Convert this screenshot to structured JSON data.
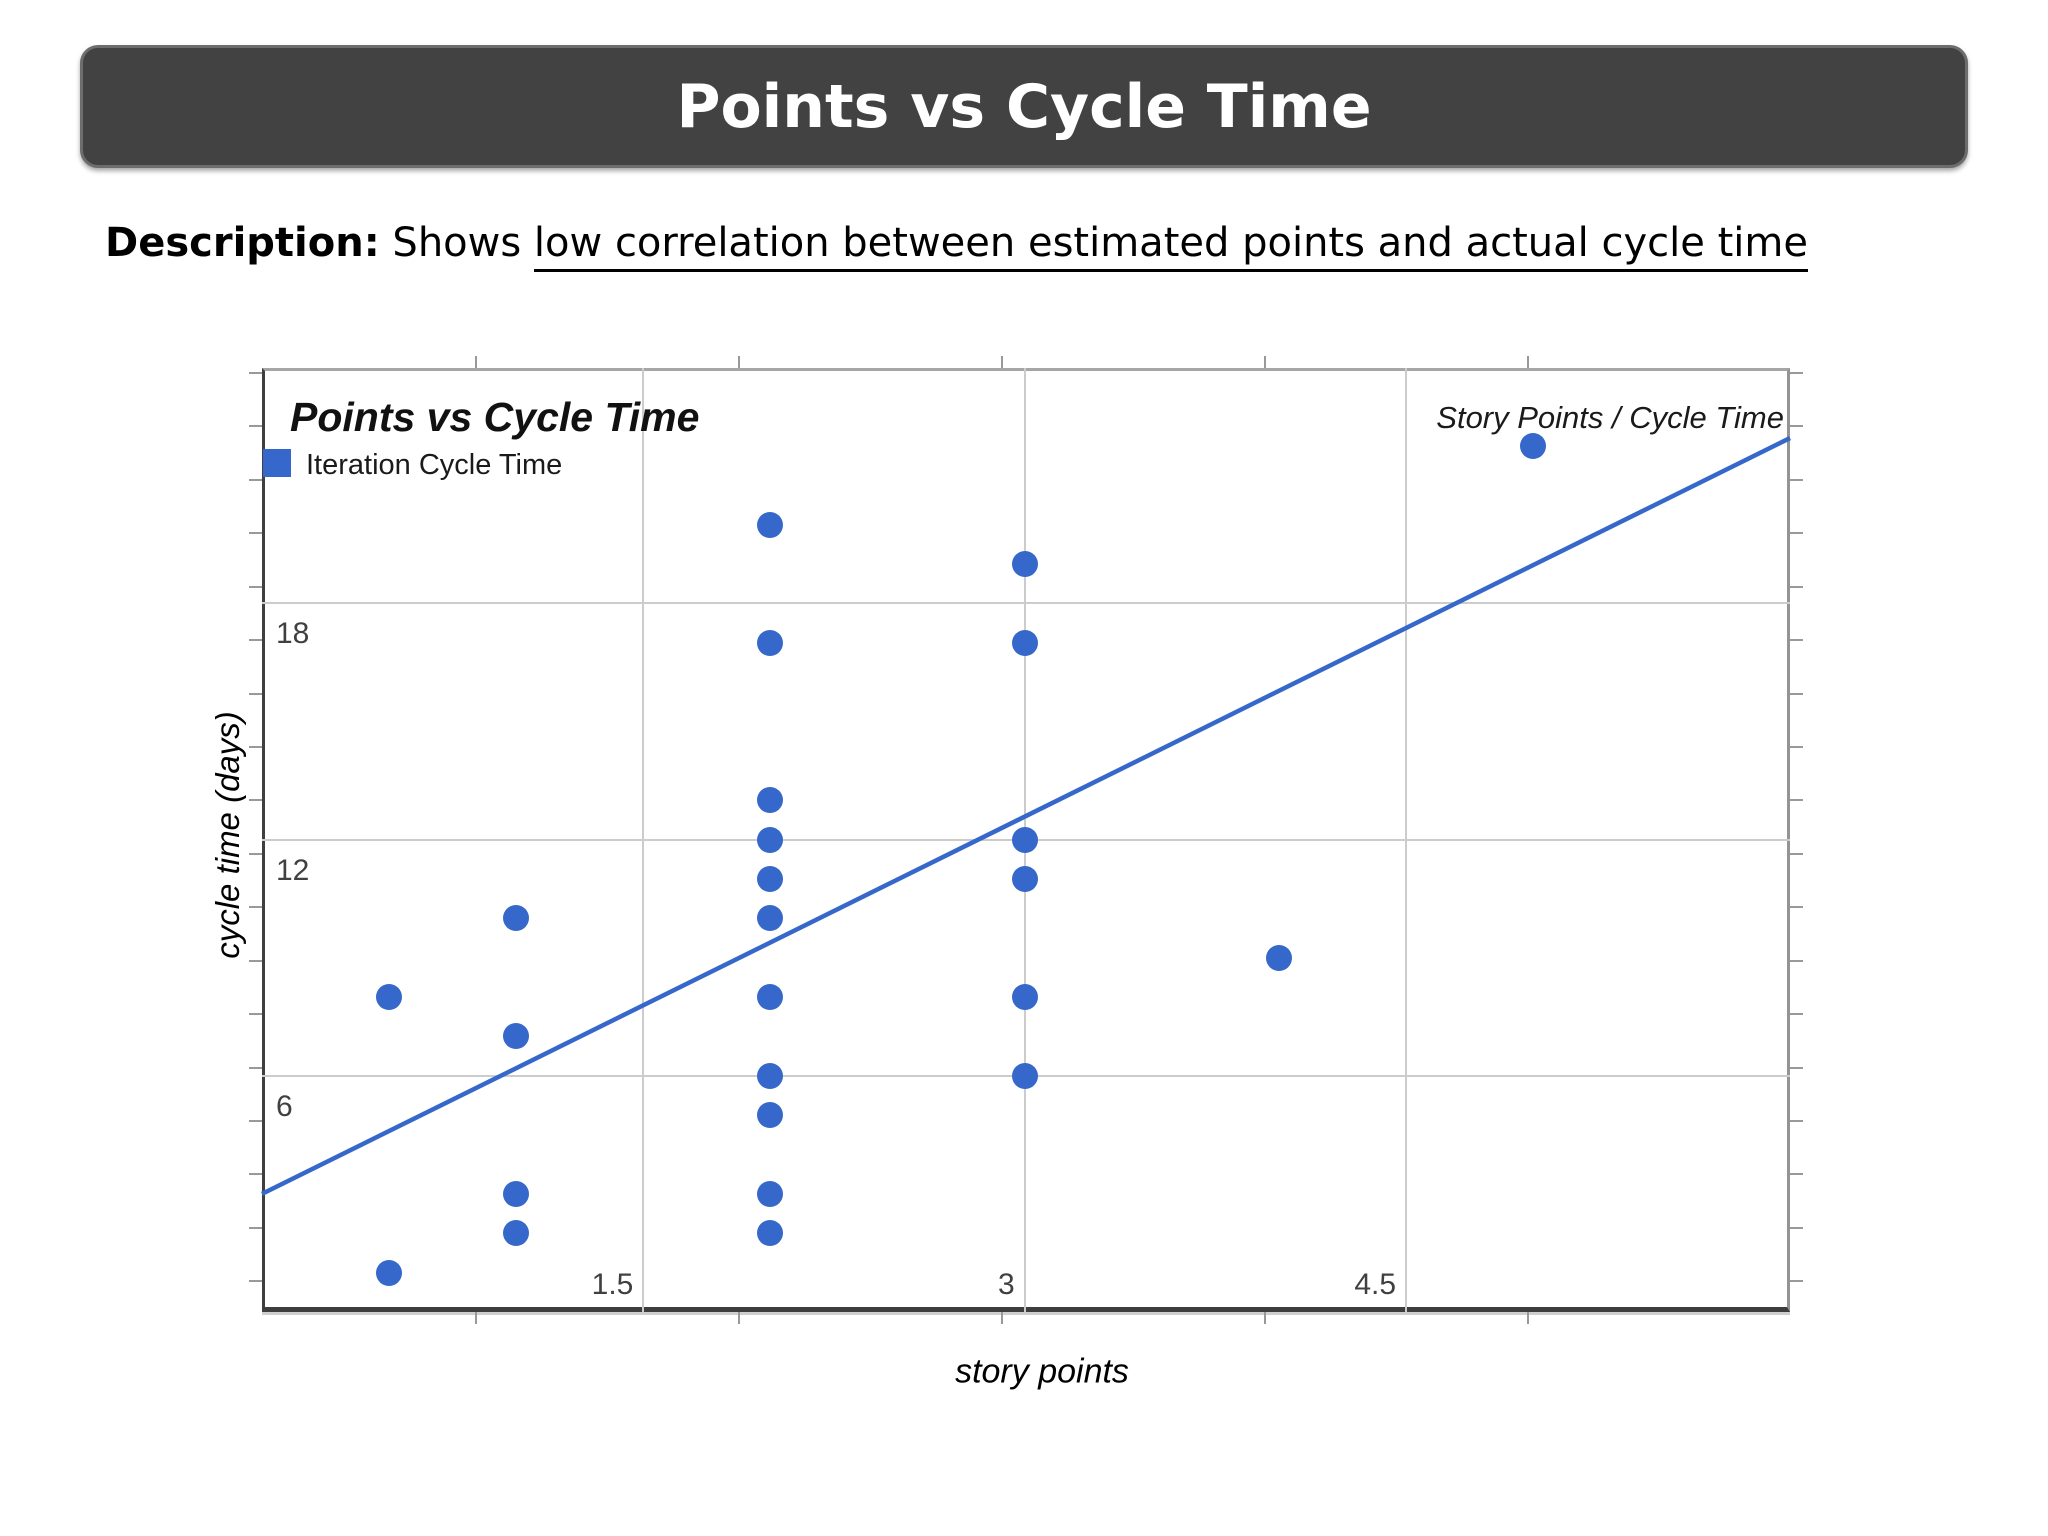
{
  "header": {
    "title": "Points vs Cycle Time"
  },
  "description": {
    "label": "Description:",
    "lead": " Shows ",
    "underlined": "low correlation between estimated points and actual cycle time"
  },
  "chart_data": {
    "type": "scatter",
    "title": "Points vs Cycle Time",
    "legend": [
      {
        "label": "Iteration Cycle Time",
        "color": "#3667CB"
      }
    ],
    "series_label": "Story Points / Cycle Time",
    "xlabel": "story points",
    "ylabel": "cycle time (days)",
    "xlim": [
      0,
      6.01
    ],
    "ylim": [
      0,
      23.98
    ],
    "grid": true,
    "legend_position": "top-left-inside",
    "x_gridlines": [
      1.5,
      3,
      4.5
    ],
    "y_gridlines": [
      6,
      12,
      18
    ],
    "x_tick_labels": [
      "1.5",
      "3",
      "4.5"
    ],
    "y_tick_labels": [
      "6",
      "12",
      "18"
    ],
    "points": [
      [
        0.5,
        8
      ],
      [
        0.5,
        1
      ],
      [
        1,
        10
      ],
      [
        1,
        7
      ],
      [
        1,
        3
      ],
      [
        1,
        2
      ],
      [
        2,
        20
      ],
      [
        2,
        17
      ],
      [
        2,
        13
      ],
      [
        2,
        12
      ],
      [
        2,
        11
      ],
      [
        2,
        10
      ],
      [
        2,
        8
      ],
      [
        2,
        6
      ],
      [
        2,
        5
      ],
      [
        2,
        3
      ],
      [
        2,
        2
      ],
      [
        3,
        19
      ],
      [
        3,
        17
      ],
      [
        3,
        12
      ],
      [
        3,
        11
      ],
      [
        3,
        8
      ],
      [
        3,
        6
      ],
      [
        4,
        9
      ],
      [
        5,
        22
      ]
    ],
    "trendline": {
      "x1": 0,
      "y1": 3.0,
      "x2": 6.01,
      "y2": 22.2
    },
    "colors": {
      "series": "#3667CB",
      "gridline": "#cccccc",
      "axis_text": "#404040",
      "tick": "#999999"
    }
  }
}
